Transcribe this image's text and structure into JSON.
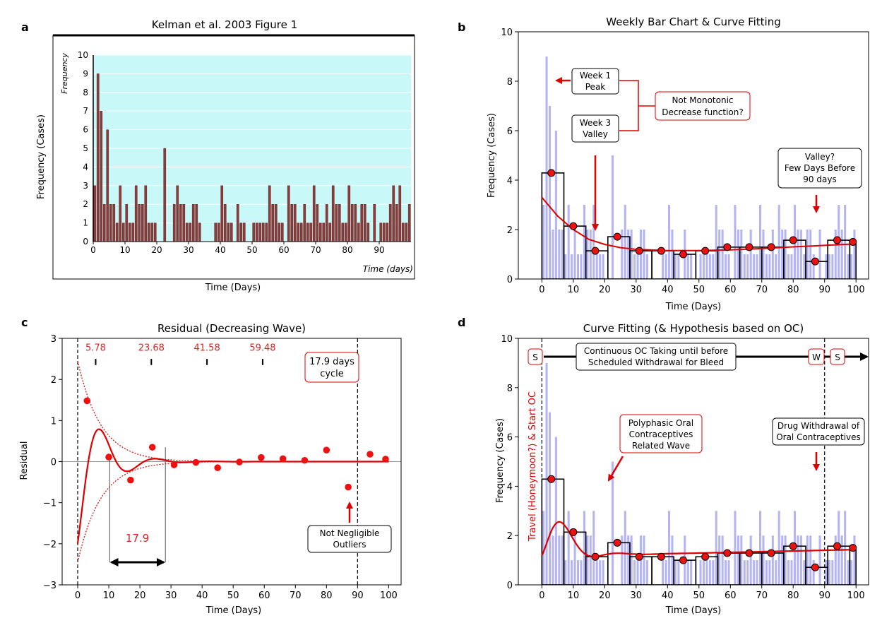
{
  "chart_data": [
    {
      "panel": "a",
      "type": "bar",
      "title": "Kelman et al. 2003 Figure 1",
      "xlabel": "Time (Days)",
      "ylabel": "Frequency (Cases)",
      "inner_ylabel": "Frequency",
      "inner_xlabel": "Time (days)",
      "xlim": [
        0,
        100
      ],
      "ylim": [
        0,
        10
      ],
      "xticks": [
        "0",
        "10",
        "20",
        "30",
        "40",
        "50",
        "60",
        "70",
        "80",
        "90"
      ],
      "yticks": [
        "0",
        "1",
        "2",
        "3",
        "4",
        "5",
        "6",
        "7",
        "8",
        "9",
        "10"
      ],
      "colors": {
        "bar": "#8b3a3a",
        "background": "#c8f8f8"
      },
      "x": [
        0,
        1,
        2,
        3,
        4,
        5,
        6,
        7,
        8,
        9,
        10,
        11,
        12,
        13,
        14,
        15,
        16,
        17,
        18,
        19,
        20,
        21,
        22,
        23,
        24,
        25,
        26,
        27,
        28,
        29,
        30,
        31,
        32,
        33,
        34,
        35,
        36,
        37,
        38,
        39,
        40,
        41,
        42,
        43,
        44,
        45,
        46,
        47,
        48,
        49,
        50,
        51,
        52,
        53,
        54,
        55,
        56,
        57,
        58,
        59,
        60,
        61,
        62,
        63,
        64,
        65,
        66,
        67,
        68,
        69,
        70,
        71,
        72,
        73,
        74,
        75,
        76,
        77,
        78,
        79,
        80,
        81,
        82,
        83,
        84,
        85,
        86,
        87,
        88,
        89,
        90,
        91,
        92,
        93,
        94,
        95,
        96,
        97,
        98,
        99
      ],
      "values": [
        3,
        9,
        7,
        2,
        6,
        2,
        2,
        1,
        3,
        1,
        2,
        1,
        1,
        3,
        2,
        2,
        3,
        1,
        1,
        1,
        0,
        0,
        5,
        0,
        0,
        2,
        3,
        2,
        2,
        1,
        1,
        2,
        2,
        1,
        0,
        0,
        0,
        0,
        1,
        1,
        3,
        2,
        1,
        1,
        0,
        2,
        1,
        1,
        0,
        0,
        1,
        1,
        1,
        1,
        1,
        3,
        2,
        2,
        1,
        1,
        0,
        3,
        2,
        2,
        1,
        1,
        2,
        1,
        1,
        3,
        2,
        1,
        1,
        2,
        1,
        3,
        2,
        2,
        1,
        1,
        3,
        2,
        2,
        1,
        2,
        2,
        1,
        0,
        2,
        0,
        1,
        1,
        1,
        2,
        3,
        2,
        3,
        1,
        1,
        2
      ]
    },
    {
      "panel": "b",
      "type": "bar",
      "title": "Weekly Bar Chart & Curve Fitting",
      "xlabel": "Time (Days)",
      "ylabel": "Frequency (Cases)",
      "xlim": [
        -7.5,
        104
      ],
      "ylim": [
        0,
        10
      ],
      "xticks": [
        "0",
        "10",
        "20",
        "30",
        "40",
        "50",
        "60",
        "70",
        "80",
        "90",
        "100"
      ],
      "yticks": [
        "0",
        "2",
        "4",
        "6",
        "8",
        "10"
      ],
      "colors": {
        "daily_bar": "#a8a8f0",
        "weekly_bar": "#000000",
        "curve": "#dd0000",
        "point": "#ee1111"
      },
      "weekly": {
        "x": [
          3,
          10,
          17,
          24,
          31,
          38,
          45,
          52,
          59,
          66,
          73,
          80,
          87,
          94,
          99
        ],
        "values": [
          4.29,
          2.14,
          1.14,
          1.71,
          1.14,
          1.14,
          1.0,
          1.14,
          1.29,
          1.29,
          1.29,
          1.57,
          0.71,
          1.57,
          1.5
        ]
      },
      "fit_curve": {
        "x": [
          0,
          5,
          10,
          15,
          20,
          25,
          30,
          40,
          50,
          60,
          70,
          80,
          90,
          100
        ],
        "y": [
          3.3,
          2.55,
          2.0,
          1.6,
          1.4,
          1.27,
          1.2,
          1.15,
          1.15,
          1.18,
          1.23,
          1.3,
          1.36,
          1.42
        ]
      },
      "annotations": [
        {
          "text": "Week 1",
          "text2": "Peak"
        },
        {
          "text": "Week 3",
          "text2": "Valley"
        },
        {
          "text": "Not Monotonic",
          "text2": "Decrease function?"
        },
        {
          "text": "Valley?",
          "text2": "Few Days Before",
          "text3": "90 days"
        }
      ]
    },
    {
      "panel": "c",
      "type": "scatter",
      "title": "Residual (Decreasing Wave)",
      "xlabel": "Time (Days)",
      "ylabel": "Residual",
      "xlim": [
        -5,
        104
      ],
      "ylim": [
        -3,
        3
      ],
      "xticks": [
        "0",
        "10",
        "20",
        "30",
        "40",
        "50",
        "60",
        "70",
        "80",
        "90",
        "100"
      ],
      "yticks": [
        "-3",
        "-2",
        "-1",
        "0",
        "1",
        "2",
        "3"
      ],
      "colors": {
        "curve": "#dd0000",
        "point": "#ee1111",
        "label": "#dd2222"
      },
      "points": {
        "x": [
          3,
          10,
          17,
          24,
          31,
          38,
          45,
          52,
          59,
          66,
          73,
          80,
          87,
          94,
          99
        ],
        "y": [
          1.48,
          0.11,
          -0.45,
          0.35,
          -0.08,
          -0.02,
          -0.15,
          -0.01,
          0.1,
          0.07,
          0.03,
          0.28,
          -0.62,
          0.18,
          0.06
        ]
      },
      "peak_labels": [
        {
          "x": 5.78,
          "text": "5.78"
        },
        {
          "x": 23.68,
          "text": "23.68"
        },
        {
          "x": 41.58,
          "text": "41.58"
        },
        {
          "x": 59.48,
          "text": "59.48"
        }
      ],
      "period_label": "17.9",
      "annotations": [
        {
          "text": "17.9 days",
          "text2": "cycle"
        },
        {
          "text": "Not Negligible",
          "text2": "Outliers"
        }
      ]
    },
    {
      "panel": "d",
      "type": "bar",
      "title": "Curve Fitting (& Hypothesis based on OC)",
      "xlabel": "Time (Days)",
      "ylabel": "Frequency (Cases)",
      "ylabel_red": "Travel (Honeymoon?) & Start OC",
      "xlim": [
        -7.5,
        104
      ],
      "ylim": [
        0,
        10
      ],
      "xticks": [
        "0",
        "10",
        "20",
        "30",
        "40",
        "50",
        "60",
        "70",
        "80",
        "90",
        "100"
      ],
      "yticks": [
        "0",
        "2",
        "4",
        "6",
        "8",
        "10"
      ],
      "colors": {
        "daily_bar": "#a8a8f0",
        "curve": "#dd0000",
        "point": "#ee1111"
      },
      "weekly": {
        "x": [
          3,
          10,
          17,
          24,
          31,
          38,
          45,
          52,
          59,
          66,
          73,
          80,
          87,
          94,
          99
        ],
        "values": [
          4.29,
          2.14,
          1.14,
          1.71,
          1.14,
          1.14,
          1.0,
          1.14,
          1.29,
          1.29,
          1.29,
          1.57,
          0.71,
          1.57,
          1.5
        ]
      },
      "annotations": [
        {
          "text": "S"
        },
        {
          "text": "Continuous OC Taking until before",
          "text2": "Scheduled Withdrawal for Bleed"
        },
        {
          "text": "W"
        },
        {
          "text": "S"
        },
        {
          "text": "Polyphasic Oral",
          "text2": "Contraceptives",
          "text3": "Related Wave"
        },
        {
          "text": "Drug Withdrawal of",
          "text2": "Oral Contraceptives"
        }
      ]
    }
  ],
  "panel_letters": [
    "a",
    "b",
    "c",
    "d"
  ]
}
